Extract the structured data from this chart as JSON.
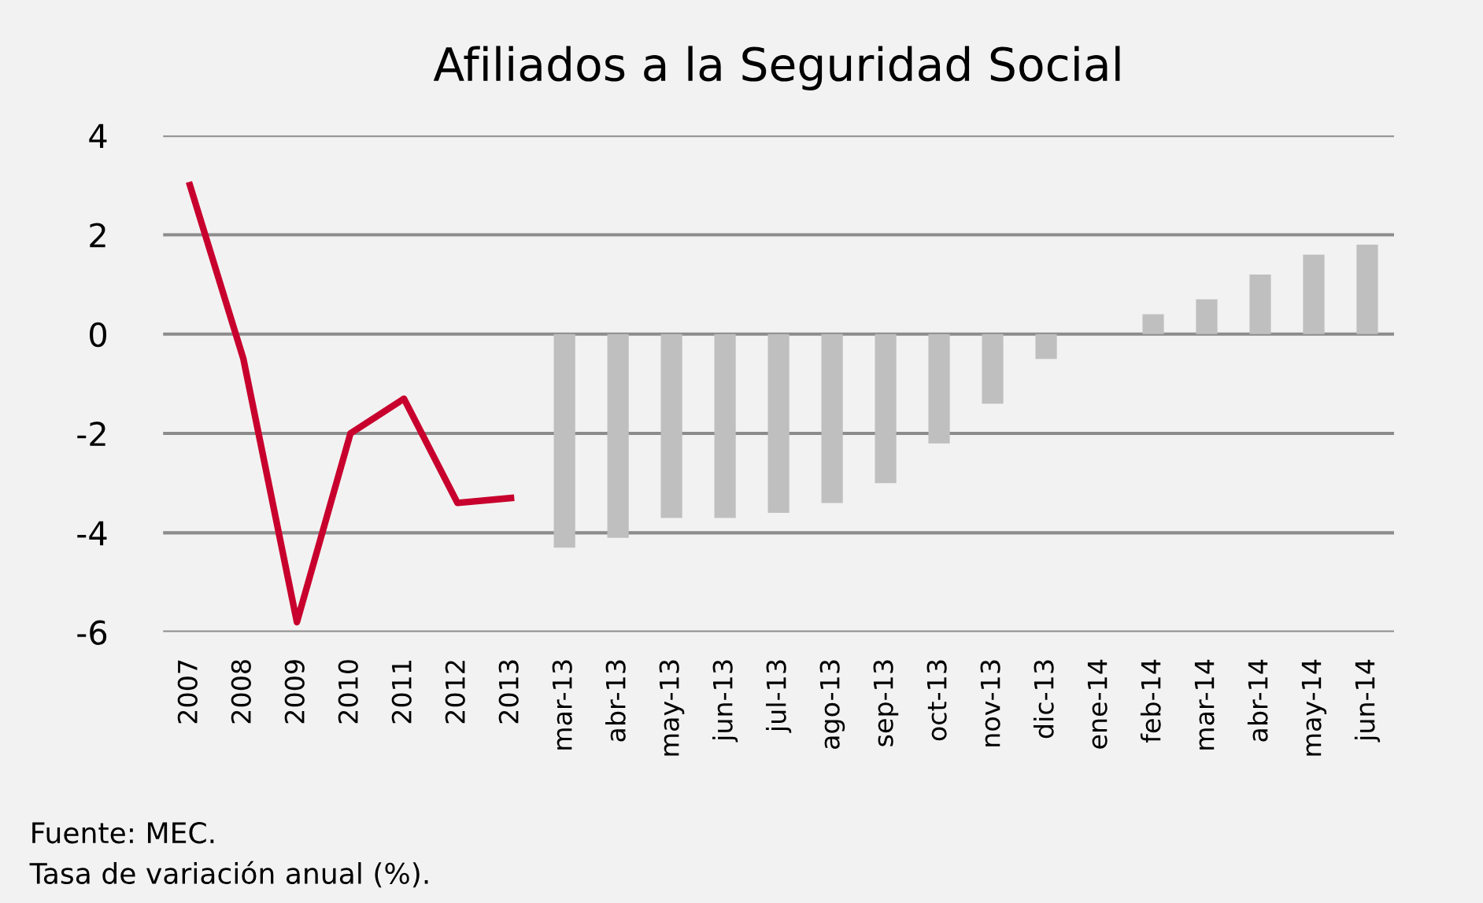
{
  "chart_data": {
    "type": "bar",
    "title": "Afiliados a la Seguridad Social",
    "categories": [
      "2007",
      "2008",
      "2009",
      "2010",
      "2011",
      "2012",
      "2013",
      "mar-13",
      "abr-13",
      "may-13",
      "jun-13",
      "jul-13",
      "ago-13",
      "sep-13",
      "oct-13",
      "nov-13",
      "dic-13",
      "ene-14",
      "feb-14",
      "mar-14",
      "abr-14",
      "may-14",
      "jun-14"
    ],
    "series": [
      {
        "type": "line",
        "color": "#c8002d",
        "values": [
          3.0,
          -0.5,
          -5.8,
          -2.0,
          -1.3,
          -3.4,
          -3.3,
          null,
          null,
          null,
          null,
          null,
          null,
          null,
          null,
          null,
          null,
          null,
          null,
          null,
          null,
          null,
          null
        ]
      },
      {
        "color": "#bfbfbf",
        "values": [
          null,
          null,
          null,
          null,
          null,
          null,
          null,
          -4.3,
          -4.1,
          -3.7,
          -3.7,
          -3.6,
          -3.4,
          -3.0,
          -2.2,
          -1.4,
          -0.5,
          0.0,
          0.4,
          0.7,
          1.2,
          1.6,
          1.8
        ]
      }
    ],
    "ylim": [
      -6,
      4
    ],
    "yticks": [
      -6,
      -4,
      -2,
      0,
      2,
      4
    ],
    "grid": "y",
    "annotations": [
      "Fuente: MEC.",
      "Tasa de variación anual (%)."
    ]
  }
}
